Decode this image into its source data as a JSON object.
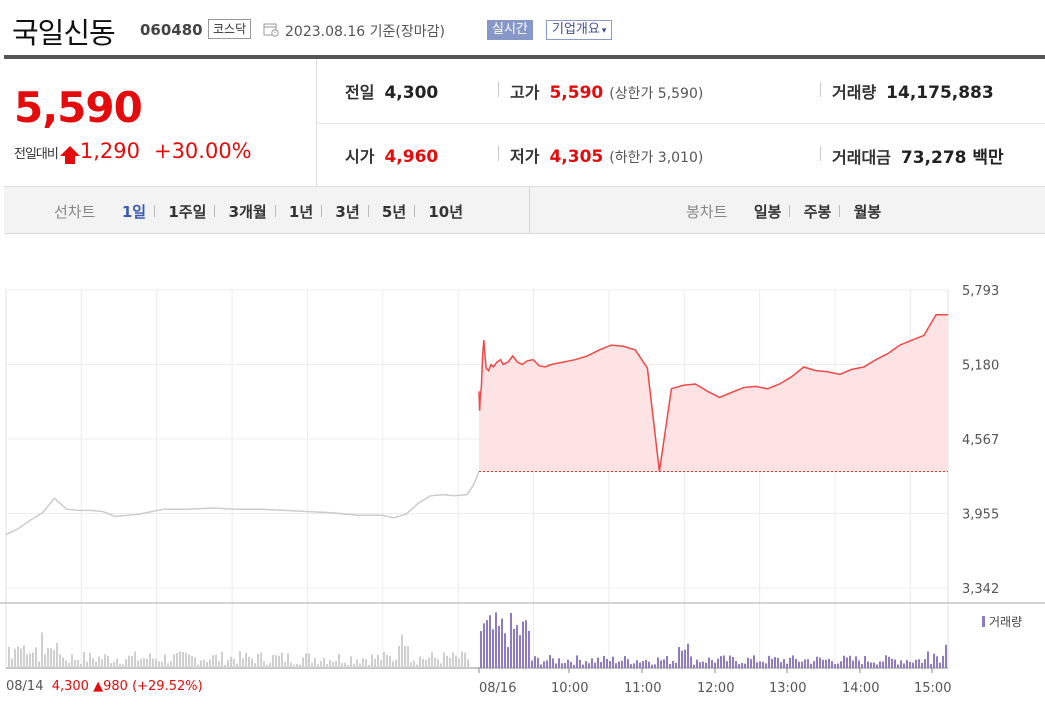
{
  "header": {
    "name": "국일신동",
    "code": "060480",
    "market": "코스닥",
    "date": "2023.08.16",
    "basis": "기준(장마감)",
    "realtime_label": "실시간",
    "corp_label": "기업개요"
  },
  "quote": {
    "price": "5,590",
    "change_label": "전일대비",
    "change": "1,290",
    "change_pct": "+30.00%",
    "prev_label": "전일",
    "prev": "4,300",
    "high_label": "고가",
    "high": "5,590",
    "upper_label": "(상한가 5,590)",
    "volume_label": "거래량",
    "volume": "14,175,883",
    "open_label": "시가",
    "open": "4,960",
    "low_label": "저가",
    "low": "4,305",
    "lower_label": "(하한가 3,010)",
    "amount_label": "거래대금",
    "amount": "73,278",
    "amount_unit": "백만"
  },
  "tabs": {
    "line_label": "선차트",
    "line_items": [
      "1일",
      "1주일",
      "3개월",
      "1년",
      "3년",
      "5년",
      "10년"
    ],
    "line_active": 0,
    "candle_label": "봉차트",
    "candle_items": [
      "일봉",
      "주봉",
      "월봉"
    ]
  },
  "colors": {
    "up": "#e30b0b",
    "line_today": "#f04848",
    "fill_today": "#fde3e3",
    "line_prev": "#cccccc",
    "volume": "#8e7bc2",
    "volume_prev": "#cfcfcf"
  },
  "legend": {
    "volume": "거래량"
  },
  "footer": {
    "prev_date": "08/14",
    "prev_close": "4,300",
    "prev_change": "980",
    "prev_pct": "(+29.52%)"
  },
  "chart_data": {
    "type": "line",
    "y_ticks": [
      "5,793",
      "5,180",
      "4,567",
      "3,955",
      "3,342"
    ],
    "ylim": [
      3342,
      5793
    ],
    "x_ticks": [
      "08/16",
      "10:00",
      "11:00",
      "12:00",
      "13:00",
      "14:00",
      "15:00"
    ],
    "reference_price": 4300,
    "grid": true,
    "series": [
      {
        "x": [
          0,
          0.5,
          1,
          2,
          3,
          4,
          5,
          6,
          8,
          10,
          12,
          15,
          18,
          20,
          24,
          28,
          32,
          36,
          40,
          45,
          50,
          55,
          60,
          70,
          80,
          90,
          100,
          110,
          120,
          130,
          140,
          150,
          160,
          170,
          180,
          190,
          200,
          210,
          220,
          230,
          240,
          250,
          260,
          270,
          280,
          290,
          300,
          310,
          320,
          330,
          340,
          350,
          360,
          370,
          380,
          390
        ],
        "y": [
          4960,
          4800,
          4900,
          5000,
          5250,
          5380,
          5250,
          5150,
          5130,
          5180,
          5160,
          5200,
          5220,
          5180,
          5200,
          5250,
          5200,
          5180,
          5210,
          5220,
          5170,
          5160,
          5180,
          5200,
          5220,
          5250,
          5300,
          5340,
          5330,
          5300,
          5150,
          4300,
          4980,
          5010,
          5020,
          4960,
          4910,
          4950,
          4990,
          5000,
          4980,
          5020,
          5080,
          5160,
          5130,
          5120,
          5100,
          5140,
          5160,
          5220,
          5270,
          5340,
          5380,
          5420,
          5590,
          5590
        ]
      },
      {
        "x": [
          -390,
          -380,
          -370,
          -360,
          -350,
          -340,
          -330,
          -320,
          -310,
          -300,
          -280,
          -260,
          -240,
          -220,
          -200,
          -180,
          -160,
          -140,
          -120,
          -100,
          -80,
          -70,
          -60,
          -50,
          -40,
          -30,
          -20,
          -10,
          -5,
          0
        ],
        "y": [
          3780,
          3830,
          3900,
          3960,
          4080,
          3990,
          3980,
          3980,
          3970,
          3930,
          3950,
          3990,
          3990,
          4000,
          3990,
          3990,
          3980,
          3970,
          3960,
          3940,
          3940,
          3920,
          3950,
          4040,
          4100,
          4110,
          4100,
          4110,
          4180,
          4300
        ]
      }
    ]
  }
}
